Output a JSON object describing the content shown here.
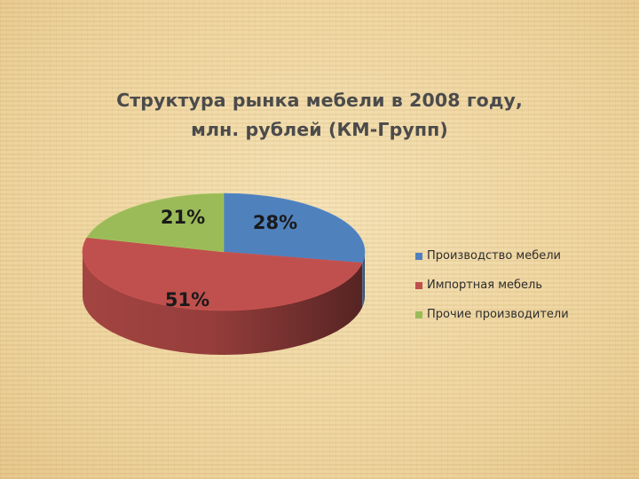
{
  "chart_data": {
    "type": "pie",
    "title": "Структура рынка мебели в 2008 году, млн. рублей (КМ-Групп)",
    "title_lines": [
      "Структура рынка мебели в 2008 году,",
      "млн. рублей (КМ-Групп)"
    ],
    "style": "3d",
    "legend_position": "right",
    "slices": [
      {
        "name": "Производство  мебели",
        "value": 28,
        "label": "28%",
        "color": "#4f81bd"
      },
      {
        "name": "Импортная мебель",
        "value": 51,
        "label": "51%",
        "color": "#c0504d"
      },
      {
        "name": "Прочие производители",
        "value": 21,
        "label": "21%",
        "color": "#9bbb59"
      }
    ]
  }
}
